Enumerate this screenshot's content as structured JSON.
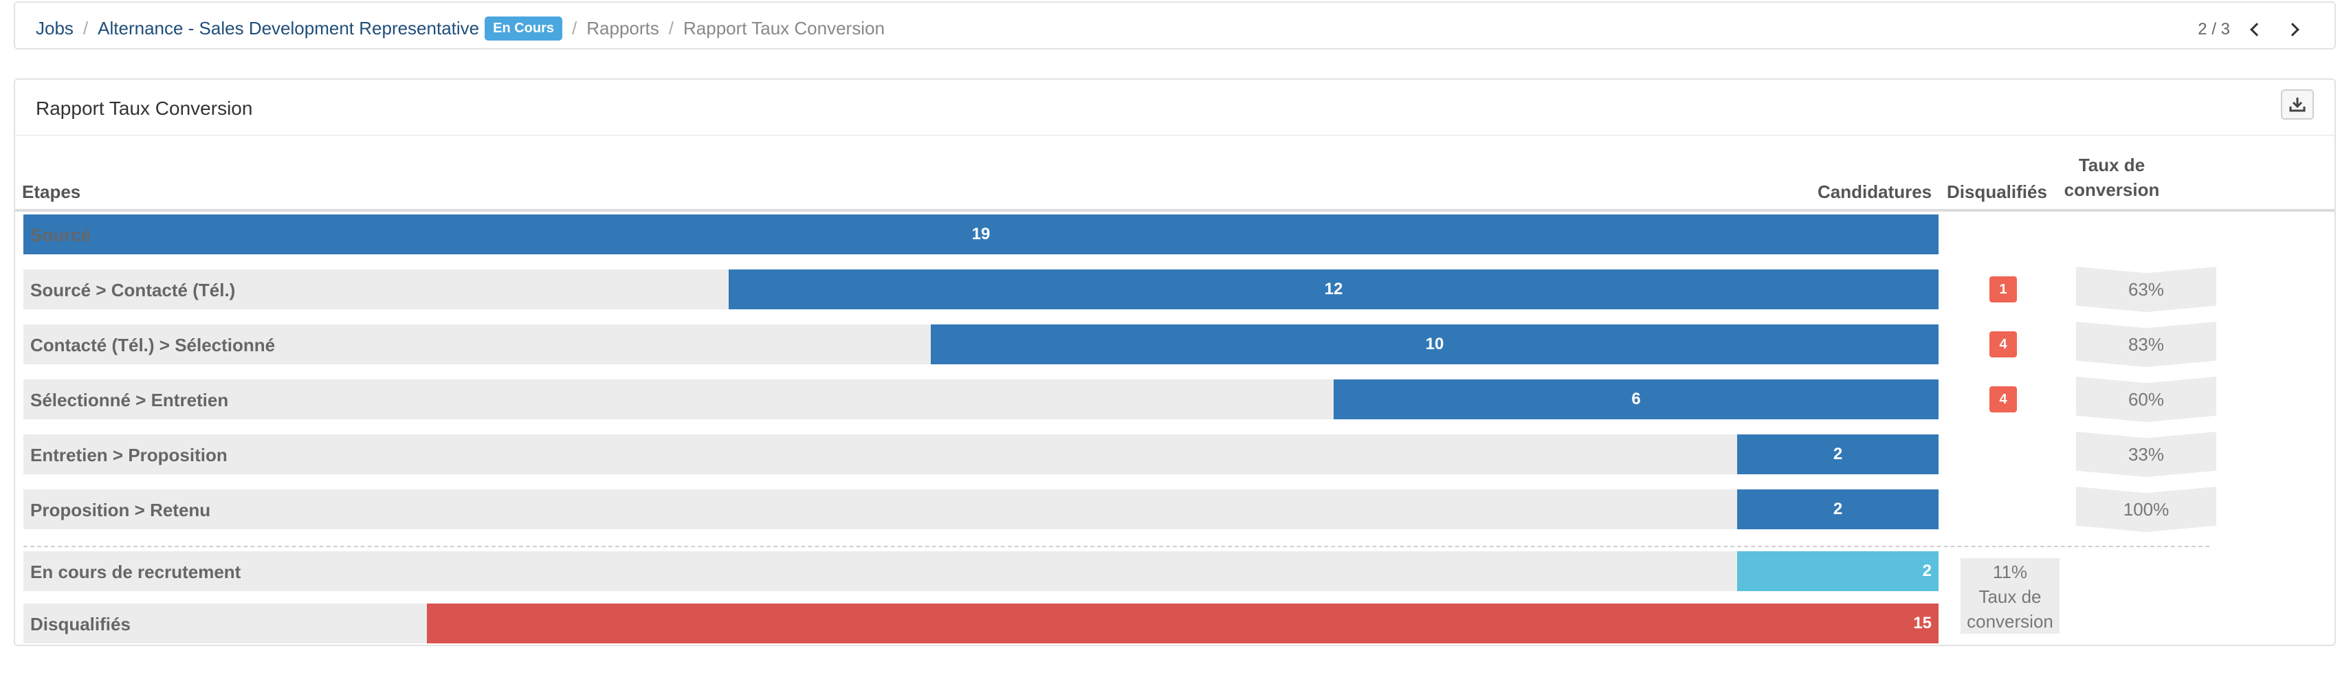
{
  "breadcrumb": {
    "jobs": "Jobs",
    "job_title": "Alternance - Sales Development Representative",
    "status_badge": "En Cours",
    "reports": "Rapports",
    "current": "Rapport Taux Conversion"
  },
  "pager": {
    "label": "2 / 3"
  },
  "panel": {
    "title": "Rapport Taux Conversion"
  },
  "table": {
    "headers": {
      "etapes": "Etapes",
      "candidatures": "Candidatures",
      "disqualifies": "Disqualifiés",
      "taux": "Taux de conversion"
    },
    "max_candidatures": 19,
    "rows": [
      {
        "label": "Sourcé",
        "candidatures": "19",
        "value": 19,
        "disqualifies": "",
        "taux": ""
      },
      {
        "label": "Sourcé > Contacté (Tél.)",
        "candidatures": "12",
        "value": 12,
        "disqualifies": "1",
        "taux": "63%"
      },
      {
        "label": "Contacté (Tél.) > Sélectionné",
        "candidatures": "10",
        "value": 10,
        "disqualifies": "4",
        "taux": "83%"
      },
      {
        "label": "Sélectionné > Entretien",
        "candidatures": "6",
        "value": 6,
        "disqualifies": "4",
        "taux": "60%"
      },
      {
        "label": "Entretien > Proposition",
        "candidatures": "2",
        "value": 2,
        "disqualifies": "",
        "taux": "33%"
      },
      {
        "label": "Proposition > Retenu",
        "candidatures": "2",
        "value": 2,
        "disqualifies": "",
        "taux": "100%"
      }
    ],
    "summary": [
      {
        "label": "En cours de recrutement",
        "candidatures": "2",
        "value": 2
      },
      {
        "label": "Disqualifiés",
        "candidatures": "15",
        "value": 15
      }
    ],
    "overall_rate": {
      "value": "11%",
      "label": "Taux de conversion"
    }
  },
  "colors": {
    "bar_primary": "#3278b7",
    "bar_in_progress": "#5bc0de",
    "bar_disqualified": "#d9534f",
    "badge_disqualified": "#ef6453",
    "badge_status": "#4aa6df"
  }
}
